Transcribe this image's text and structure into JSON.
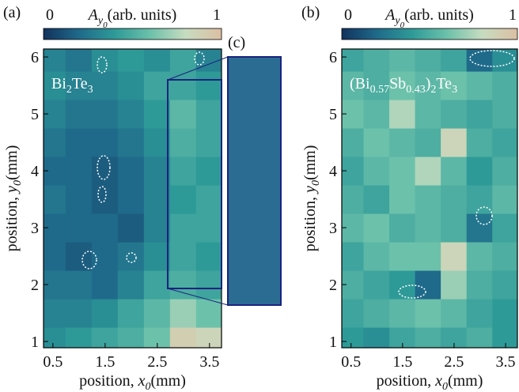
{
  "chart_data": [
    {
      "type": "heatmap",
      "panel_label": "(a)",
      "inset_label": "(c)",
      "annotation": {
        "parts": [
          {
            "text": "Bi"
          },
          {
            "text": "2",
            "sub": 1
          },
          {
            "text": "Te"
          },
          {
            "text": "3",
            "sub": 1
          }
        ]
      },
      "colorbar_label": {
        "parts": [
          {
            "text": "A",
            "italic": true
          },
          {
            "text": "y",
            "italic": true,
            "sub": 1
          },
          {
            "text": "0",
            "italic": true,
            "sub": 2
          },
          {
            "text": "(arb. units)"
          }
        ]
      },
      "xlabel": {
        "parts": [
          {
            "text": "position, "
          },
          {
            "text": "x",
            "italic": true
          },
          {
            "text": "0",
            "italic": true,
            "sub": 1
          },
          {
            "text": "(mm)"
          }
        ]
      },
      "ylabel": {
        "parts": [
          {
            "text": "position, "
          },
          {
            "text": "y",
            "italic": true
          },
          {
            "text": "0",
            "italic": true,
            "sub": 1
          },
          {
            "text": "(mm)"
          }
        ]
      },
      "x": [
        0.5,
        1,
        1.5,
        2,
        2.5,
        3,
        3.5
      ],
      "y": [
        1,
        1.5,
        2,
        2.5,
        3,
        3.5,
        4,
        4.5,
        5,
        5.5,
        6
      ],
      "z": [
        [
          0.35,
          0.4,
          0.45,
          0.5,
          0.6,
          0.9,
          0.85
        ],
        [
          0.3,
          0.3,
          0.35,
          0.45,
          0.55,
          0.7,
          0.6
        ],
        [
          0.25,
          0.25,
          0.2,
          0.3,
          0.45,
          0.5,
          0.45
        ],
        [
          0.2,
          0.15,
          0.2,
          0.25,
          0.35,
          0.45,
          0.4
        ],
        [
          0.2,
          0.2,
          0.2,
          0.15,
          0.3,
          0.45,
          0.45
        ],
        [
          0.25,
          0.2,
          0.15,
          0.2,
          0.3,
          0.4,
          0.45
        ],
        [
          0.2,
          0.2,
          0.15,
          0.2,
          0.3,
          0.45,
          0.4
        ],
        [
          0.25,
          0.2,
          0.2,
          0.25,
          0.35,
          0.5,
          0.45
        ],
        [
          0.3,
          0.25,
          0.25,
          0.3,
          0.4,
          0.55,
          0.45
        ],
        [
          0.35,
          0.3,
          0.3,
          0.35,
          0.45,
          0.45,
          0.4
        ],
        [
          0.3,
          0.25,
          0.35,
          0.4,
          0.35,
          0.45,
          0.3
        ]
      ],
      "xlim": [
        0.32,
        3.73
      ],
      "ylim": [
        0.89,
        6.14
      ],
      "xticks": [
        0.5,
        1.5,
        2.5,
        3.5
      ],
      "yticks": [
        1,
        2,
        3,
        4,
        5,
        6
      ],
      "clim": [
        0,
        1
      ],
      "cticks": [
        0,
        1
      ],
      "colormap": [
        "#12325e",
        "#1f6a8a",
        "#2e9a98",
        "#6cc1aa",
        "#c7dcc0",
        "#dcbfa3"
      ]
    },
    {
      "type": "heatmap",
      "panel_label": "(b)",
      "annotation": {
        "parts": [
          {
            "text": "(Bi"
          },
          {
            "text": "0.57",
            "sub": 1
          },
          {
            "text": "Sb"
          },
          {
            "text": "0.43",
            "sub": 1
          },
          {
            "text": ")"
          },
          {
            "text": "2",
            "sub": 1
          },
          {
            "text": "Te"
          },
          {
            "text": "3",
            "sub": 1
          }
        ]
      },
      "colorbar_label": {
        "parts": [
          {
            "text": "A",
            "italic": true
          },
          {
            "text": "y",
            "italic": true,
            "sub": 1
          },
          {
            "text": "0",
            "italic": true,
            "sub": 2
          },
          {
            "text": "(arb. units)"
          }
        ]
      },
      "xlabel": {
        "parts": [
          {
            "text": "position, "
          },
          {
            "text": "x",
            "italic": true
          },
          {
            "text": "0",
            "italic": true,
            "sub": 1
          },
          {
            "text": "(mm)"
          }
        ]
      },
      "ylabel": {
        "parts": [
          {
            "text": "position, "
          },
          {
            "text": "y",
            "italic": true
          },
          {
            "text": "0",
            "italic": true,
            "sub": 1
          },
          {
            "text": "(mm)"
          }
        ]
      },
      "x": [
        0.5,
        1,
        1.5,
        2,
        2.5,
        3,
        3.5
      ],
      "y": [
        1,
        1.5,
        2,
        2.5,
        3,
        3.5,
        4,
        4.5,
        5,
        5.5,
        6
      ],
      "z": [
        [
          0.4,
          0.35,
          0.45,
          0.5,
          0.45,
          0.5,
          0.4
        ],
        [
          0.45,
          0.5,
          0.55,
          0.6,
          0.55,
          0.45,
          0.4
        ],
        [
          0.5,
          0.45,
          0.4,
          0.2,
          0.7,
          0.5,
          0.45
        ],
        [
          0.45,
          0.55,
          0.6,
          0.6,
          0.85,
          0.55,
          0.5
        ],
        [
          0.55,
          0.6,
          0.5,
          0.55,
          0.5,
          0.25,
          0.45
        ],
        [
          0.5,
          0.45,
          0.6,
          0.55,
          0.5,
          0.45,
          0.55
        ],
        [
          0.45,
          0.55,
          0.6,
          0.75,
          0.55,
          0.4,
          0.5
        ],
        [
          0.5,
          0.6,
          0.55,
          0.5,
          0.85,
          0.5,
          0.45
        ],
        [
          0.6,
          0.55,
          0.75,
          0.55,
          0.5,
          0.45,
          0.5
        ],
        [
          0.55,
          0.5,
          0.6,
          0.55,
          0.6,
          0.55,
          0.5
        ],
        [
          0.45,
          0.5,
          0.55,
          0.5,
          0.45,
          0.2,
          0.35
        ]
      ],
      "xlim": [
        0.32,
        3.73
      ],
      "ylim": [
        0.89,
        6.14
      ],
      "xticks": [
        0.5,
        1.5,
        2.5,
        3.5
      ],
      "yticks": [
        1,
        2,
        3,
        4,
        5,
        6
      ],
      "clim": [
        0,
        1
      ],
      "cticks": [
        0,
        1
      ],
      "colormap": [
        "#12325e",
        "#1f6a8a",
        "#2e9a98",
        "#6cc1aa",
        "#c7dcc0",
        "#dcbfa3"
      ]
    }
  ]
}
